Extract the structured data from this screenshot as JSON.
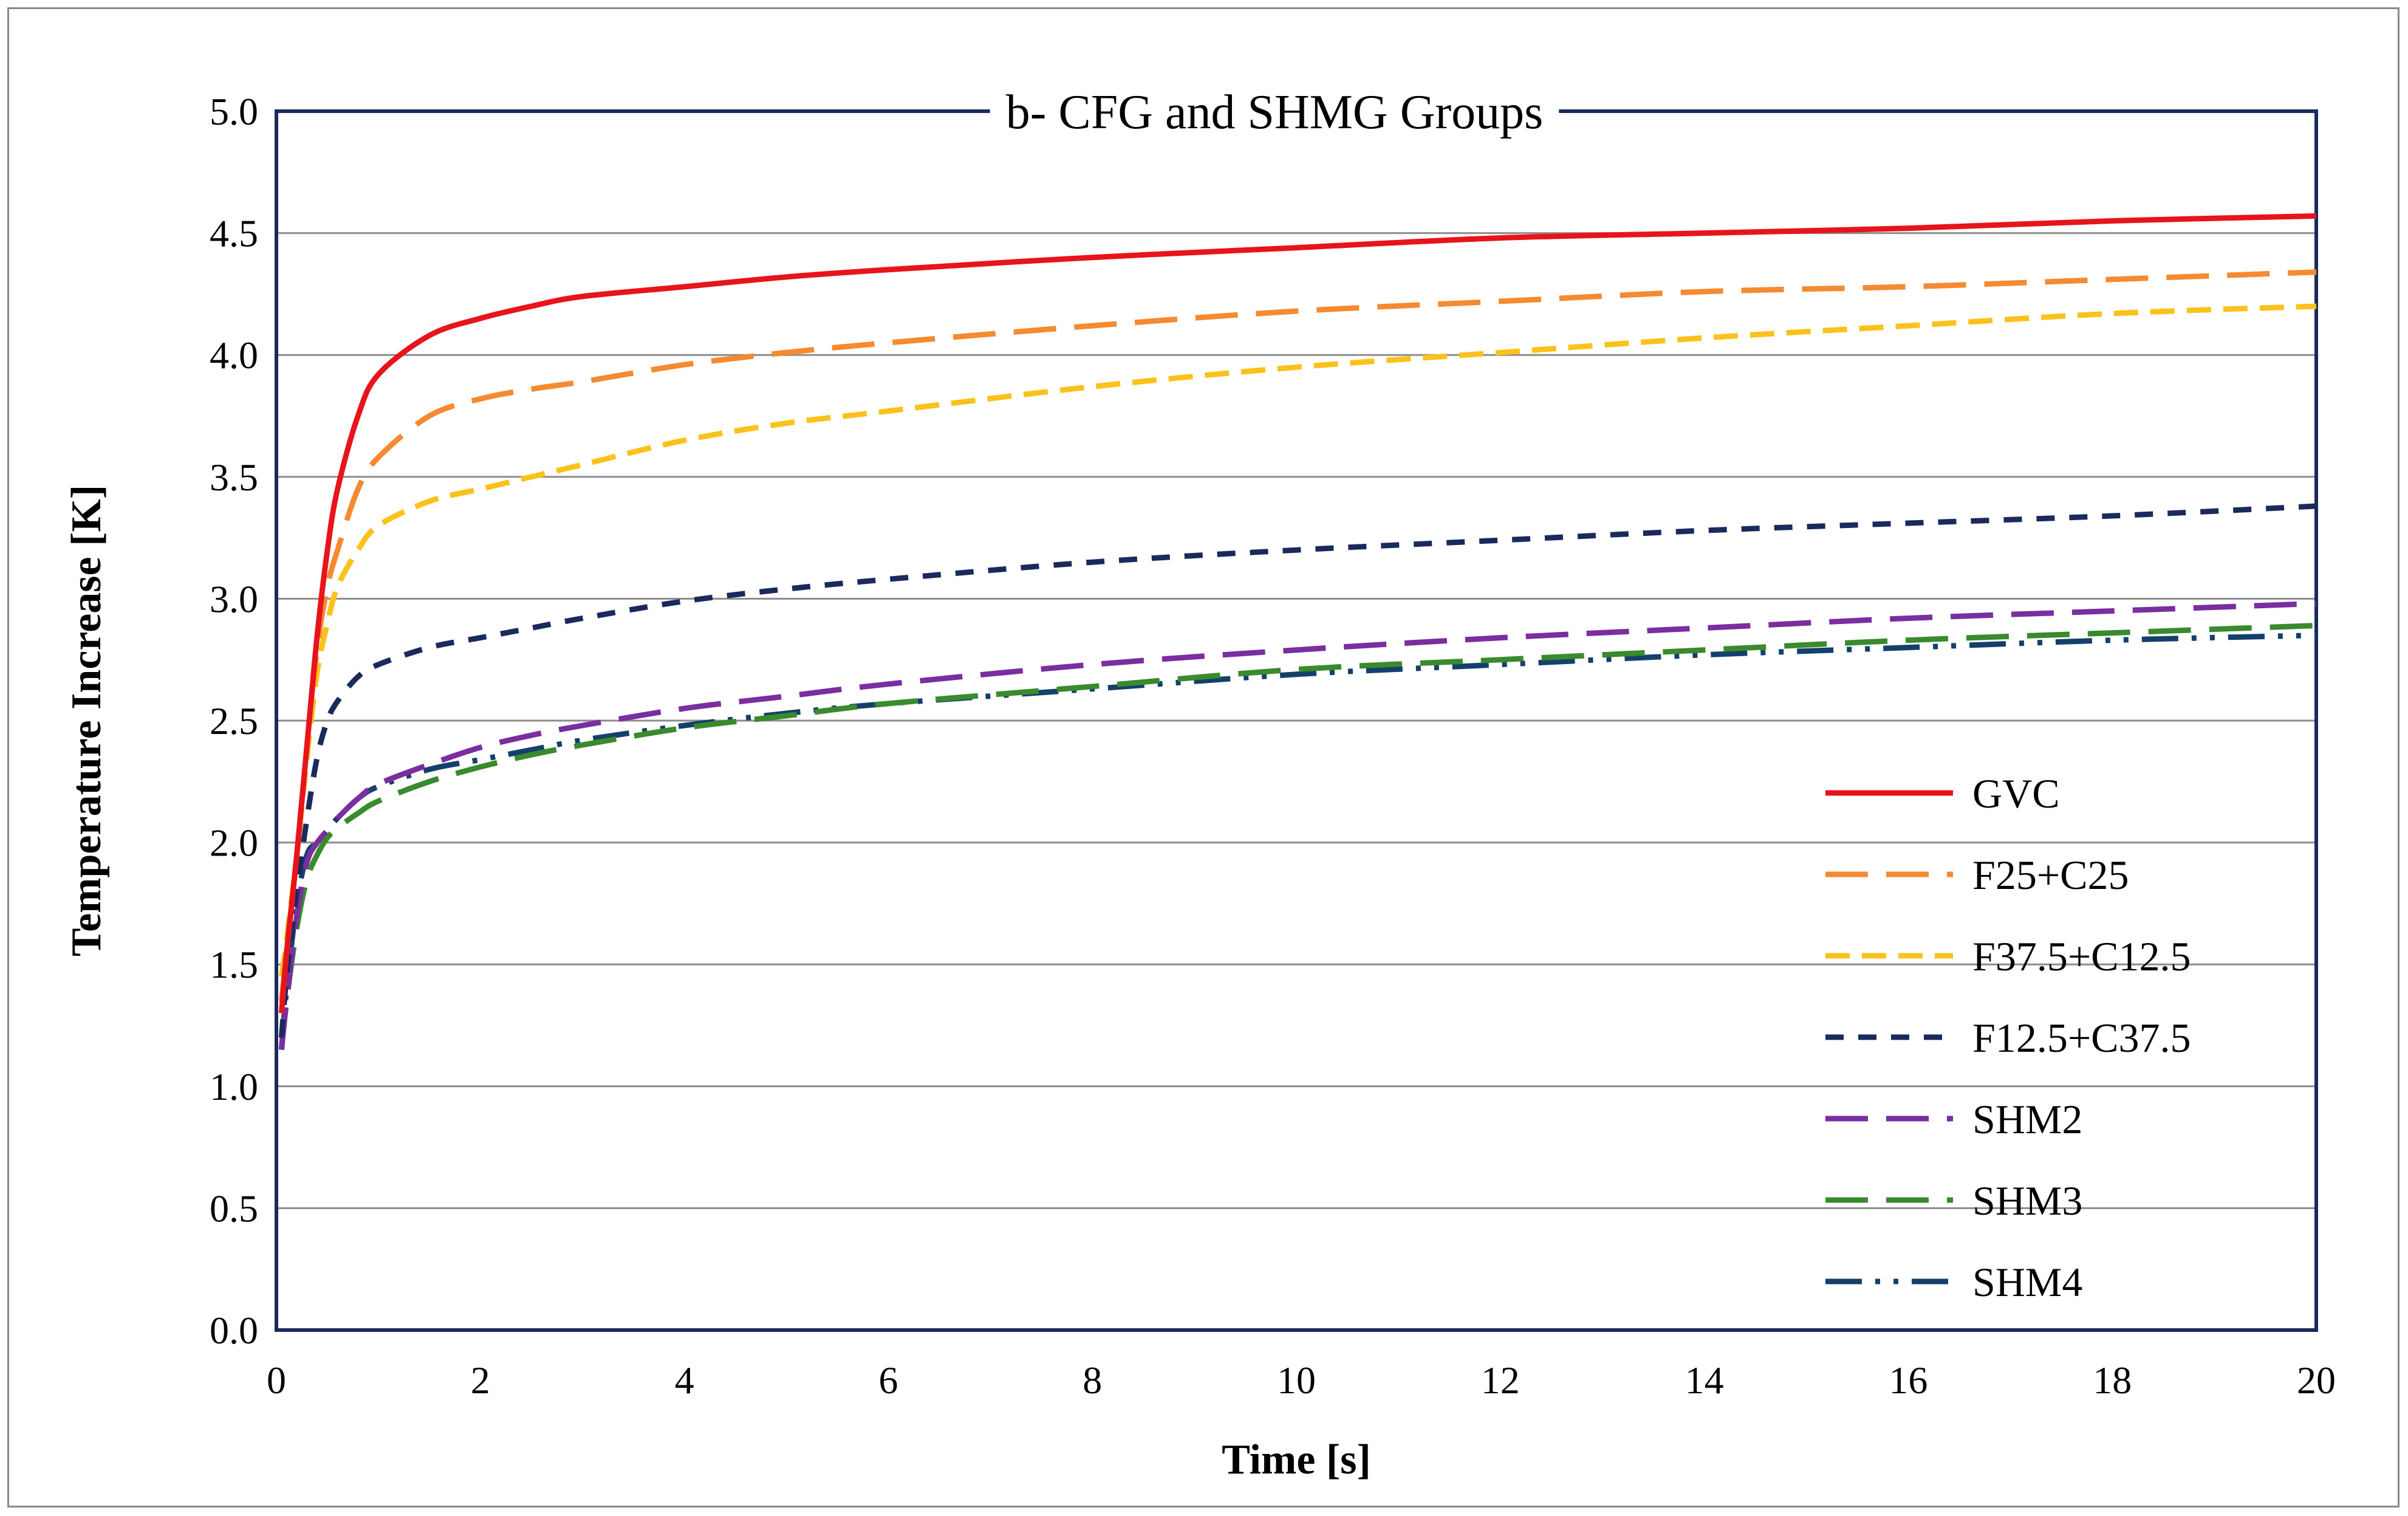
{
  "chart_data": {
    "type": "line",
    "title": "b- CFG and SHMG Groups",
    "xlabel": "Time [s]",
    "ylabel": "Temperature Increase [K]",
    "xlim": [
      0,
      20
    ],
    "ylim": [
      0,
      5
    ],
    "xticks": [
      "0",
      "2",
      "4",
      "6",
      "8",
      "10",
      "12",
      "14",
      "16",
      "18",
      "20"
    ],
    "yticks": [
      "0.0",
      "0.5",
      "1.0",
      "1.5",
      "2.0",
      "2.5",
      "3.0",
      "3.5",
      "4.0",
      "4.5",
      "5.0"
    ],
    "grid": "horizontal",
    "legend_position": "right",
    "series": [
      {
        "name": "GVC",
        "color": "#e8141c",
        "style": "solid",
        "x": [
          0.05,
          0.1,
          0.2,
          0.3,
          0.4,
          0.5,
          0.6,
          0.8,
          1.0,
          1.5,
          2,
          2.5,
          3,
          4,
          5,
          6,
          8,
          10,
          12,
          14,
          16,
          18,
          20
        ],
        "y": [
          1.3,
          1.55,
          1.95,
          2.4,
          2.85,
          3.2,
          3.45,
          3.75,
          3.92,
          4.08,
          4.15,
          4.2,
          4.24,
          4.28,
          4.32,
          4.35,
          4.4,
          4.44,
          4.48,
          4.5,
          4.52,
          4.55,
          4.57
        ]
      },
      {
        "name": "F25+C25",
        "color": "#f58a30",
        "style": "longdash",
        "x": [
          0.05,
          0.1,
          0.2,
          0.3,
          0.4,
          0.5,
          0.6,
          0.8,
          1.0,
          1.5,
          2,
          2.5,
          3,
          4,
          5,
          6,
          8,
          10,
          12,
          14,
          16,
          18,
          20
        ],
        "y": [
          1.35,
          1.55,
          1.95,
          2.4,
          2.8,
          3.05,
          3.2,
          3.45,
          3.58,
          3.75,
          3.82,
          3.86,
          3.89,
          3.96,
          4.01,
          4.05,
          4.12,
          4.18,
          4.22,
          4.26,
          4.28,
          4.31,
          4.34
        ]
      },
      {
        "name": "F37.5+C12.5",
        "color": "#fbc21b",
        "style": "dash",
        "x": [
          0.05,
          0.1,
          0.2,
          0.3,
          0.4,
          0.5,
          0.6,
          0.8,
          1.0,
          1.5,
          2,
          2.5,
          3,
          4,
          5,
          6,
          8,
          10,
          12,
          14,
          16,
          18,
          20
        ],
        "y": [
          1.45,
          1.6,
          1.95,
          2.35,
          2.7,
          2.9,
          3.05,
          3.2,
          3.3,
          3.4,
          3.45,
          3.5,
          3.55,
          3.65,
          3.72,
          3.77,
          3.87,
          3.95,
          4.01,
          4.07,
          4.12,
          4.17,
          4.2
        ]
      },
      {
        "name": "F12.5+C37.5",
        "color": "#1b2a5c",
        "style": "shortdash",
        "x": [
          0.05,
          0.1,
          0.2,
          0.3,
          0.4,
          0.5,
          0.6,
          0.8,
          1.0,
          1.5,
          2,
          2.5,
          3,
          4,
          5,
          6,
          8,
          10,
          12,
          14,
          16,
          18,
          20
        ],
        "y": [
          1.2,
          1.45,
          1.8,
          2.1,
          2.35,
          2.5,
          2.58,
          2.68,
          2.73,
          2.8,
          2.84,
          2.88,
          2.92,
          2.99,
          3.04,
          3.08,
          3.15,
          3.2,
          3.24,
          3.28,
          3.31,
          3.34,
          3.38
        ]
      },
      {
        "name": "SHM2",
        "color": "#7a2ea0",
        "style": "longdash",
        "x": [
          0.05,
          0.1,
          0.2,
          0.3,
          0.4,
          0.5,
          0.6,
          0.8,
          1.0,
          1.5,
          2,
          2.5,
          3,
          4,
          5,
          6,
          8,
          10,
          12,
          14,
          16,
          18,
          20
        ],
        "y": [
          1.15,
          1.35,
          1.7,
          1.92,
          2.0,
          2.05,
          2.1,
          2.18,
          2.24,
          2.32,
          2.39,
          2.44,
          2.48,
          2.55,
          2.6,
          2.65,
          2.73,
          2.79,
          2.84,
          2.88,
          2.92,
          2.95,
          2.98
        ]
      },
      {
        "name": "SHM3",
        "color": "#3a8a2e",
        "style": "longdash",
        "x": [
          0.05,
          0.1,
          0.2,
          0.3,
          0.4,
          0.5,
          0.6,
          0.8,
          1.0,
          1.5,
          2,
          2.5,
          3,
          4,
          5,
          6,
          8,
          10,
          12,
          14,
          16,
          18,
          20
        ],
        "y": [
          1.15,
          1.35,
          1.65,
          1.85,
          1.95,
          2.02,
          2.06,
          2.12,
          2.17,
          2.25,
          2.31,
          2.36,
          2.4,
          2.47,
          2.52,
          2.57,
          2.64,
          2.71,
          2.75,
          2.79,
          2.83,
          2.86,
          2.89
        ]
      },
      {
        "name": "SHM4",
        "color": "#14406b",
        "style": "dashdotdot",
        "x": [
          0.05,
          0.1,
          0.2,
          0.3,
          0.4,
          0.5,
          0.6,
          0.8,
          1.0,
          1.5,
          2,
          2.5,
          3,
          4,
          5,
          6,
          8,
          10,
          12,
          14,
          16,
          18,
          20
        ],
        "y": [
          1.15,
          1.4,
          1.75,
          1.95,
          2.0,
          2.05,
          2.1,
          2.18,
          2.23,
          2.3,
          2.34,
          2.38,
          2.42,
          2.48,
          2.53,
          2.57,
          2.63,
          2.69,
          2.73,
          2.77,
          2.8,
          2.83,
          2.85
        ]
      }
    ]
  }
}
